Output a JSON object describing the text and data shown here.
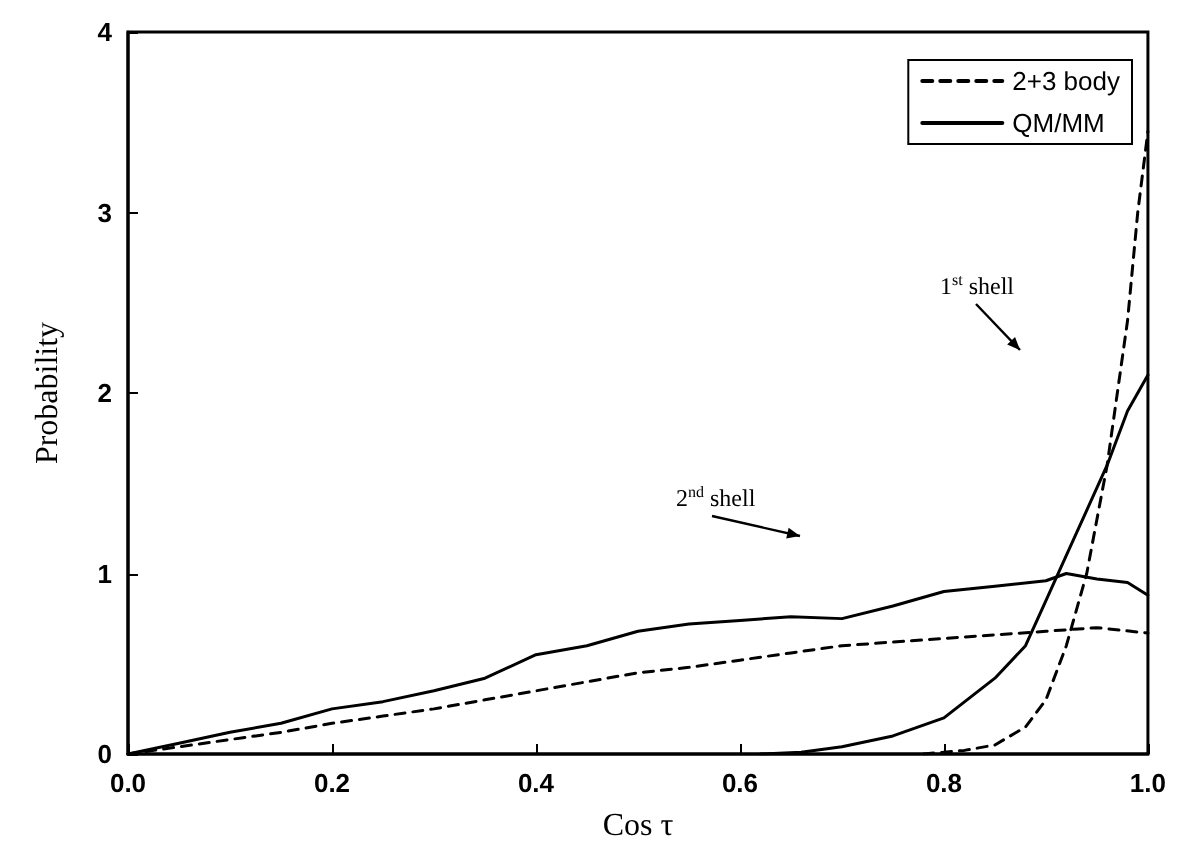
{
  "chart_data": {
    "type": "line",
    "xlabel": "Cos τ",
    "ylabel": "Probability",
    "xlim": [
      0,
      1
    ],
    "ylim": [
      0,
      4
    ],
    "xticks": [
      {
        "value": 0,
        "label": "0.0"
      },
      {
        "value": 0.2,
        "label": "0.2"
      },
      {
        "value": 0.4,
        "label": "0.4"
      },
      {
        "value": 0.6,
        "label": "0.6"
      },
      {
        "value": 0.8,
        "label": "0.8"
      },
      {
        "value": 1,
        "label": "1.0"
      }
    ],
    "yticks": [
      0,
      1,
      2,
      3,
      4
    ],
    "grid": false,
    "legend": "top right",
    "marker": "none",
    "series": [
      {
        "name": "2+3 body",
        "color": "#000000",
        "line_style": "dashed",
        "x": [
          0,
          0.05,
          0.1,
          0.15,
          0.2,
          0.25,
          0.3,
          0.35,
          0.4,
          0.45,
          0.5,
          0.55,
          0.6,
          0.65,
          0.7,
          0.75,
          0.8,
          0.85,
          0.9,
          0.95,
          1.0
        ],
        "values": [
          0,
          0.04,
          0.08,
          0.12,
          0.17,
          0.21,
          0.25,
          0.3,
          0.35,
          0.4,
          0.45,
          0.48,
          0.52,
          0.56,
          0.6,
          0.62,
          0.64,
          0.66,
          0.68,
          0.7,
          0.67
        ]
      },
      {
        "name": "QM/MM",
        "color": "#000000",
        "line_style": "solid",
        "x": [
          0,
          0.05,
          0.1,
          0.15,
          0.2,
          0.25,
          0.3,
          0.35,
          0.4,
          0.45,
          0.5,
          0.55,
          0.6,
          0.65,
          0.7,
          0.75,
          0.8,
          0.85,
          0.9,
          0.92,
          0.95,
          0.98,
          1.0
        ],
        "values": [
          0,
          0.06,
          0.12,
          0.17,
          0.25,
          0.29,
          0.35,
          0.42,
          0.55,
          0.6,
          0.68,
          0.72,
          0.74,
          0.76,
          0.75,
          0.82,
          0.9,
          0.93,
          0.96,
          1.0,
          0.97,
          0.95,
          0.88
        ]
      },
      {
        "color": "#000000",
        "line_style": "dashed",
        "x": [
          0.78,
          0.82,
          0.85,
          0.88,
          0.9,
          0.92,
          0.94,
          0.96,
          0.98,
          0.99,
          1.0
        ],
        "values": [
          0,
          0.02,
          0.05,
          0.15,
          0.3,
          0.6,
          1.0,
          1.6,
          2.4,
          3.0,
          3.45
        ]
      },
      {
        "color": "#000000",
        "line_style": "solid",
        "x": [
          0.62,
          0.66,
          0.7,
          0.75,
          0.8,
          0.85,
          0.88,
          0.9,
          0.92,
          0.94,
          0.96,
          0.98,
          1.0
        ],
        "values": [
          0,
          0.01,
          0.04,
          0.1,
          0.2,
          0.42,
          0.6,
          0.85,
          1.1,
          1.35,
          1.6,
          1.9,
          2.1
        ]
      }
    ],
    "annotations": [
      "1$^{st}$ shell",
      "2$^{nd}$ shell"
    ]
  }
}
